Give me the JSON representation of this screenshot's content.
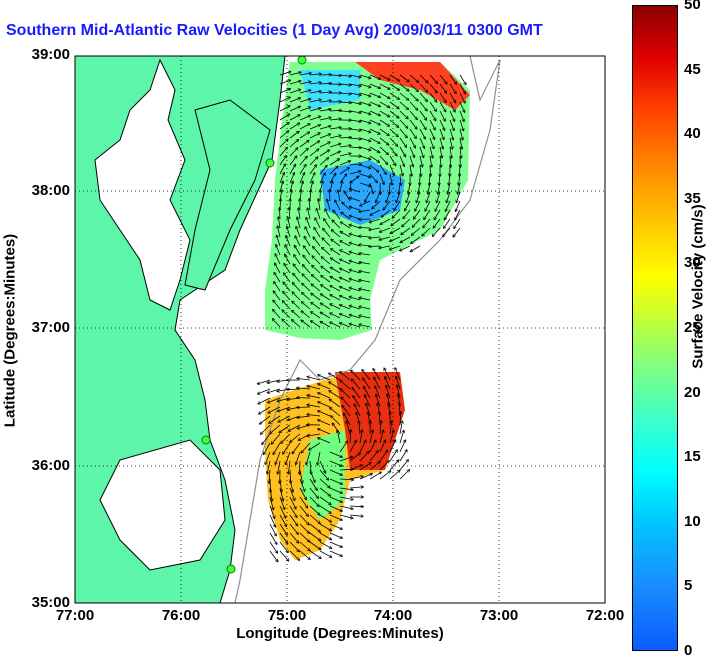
{
  "title": "Southern Mid-Atlantic Raw Velocities (1 Day Avg) 2009/03/11 0300 GMT",
  "x_ticks": [
    "77:00",
    "76:00",
    "75:00",
    "74:00",
    "73:00",
    "72:00"
  ],
  "y_ticks": [
    "39:00",
    "38:00",
    "37:00",
    "36:00",
    "35:00"
  ],
  "xlabel": "Longitude (Degrees:Minutes)",
  "ylabel": "Latitude (Degrees:Minutes)",
  "colorbar": {
    "label": "Surface Velocity (cm/s)",
    "ticks": [
      "50",
      "45",
      "40",
      "35",
      "30",
      "25",
      "20",
      "15",
      "10",
      "5",
      "0"
    ],
    "min": 0,
    "max": 50
  },
  "colors": {
    "land": "#5cf5aa",
    "title": "#1a1aff"
  }
}
